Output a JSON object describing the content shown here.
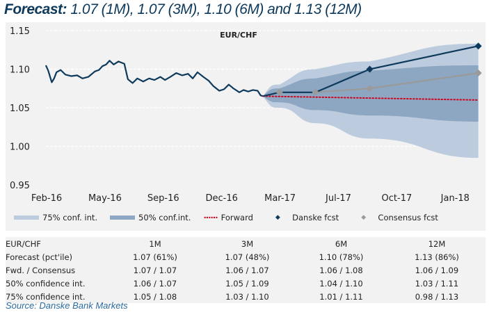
{
  "title": {
    "bold": "Forecast:",
    "rest": "1.07 (1M), 1.07 (3M), 1.10 (6M) and 1.13 (12M)"
  },
  "chart_data": {
    "type": "line",
    "title": "EUR/CHF",
    "ylim": [
      0.95,
      1.15
    ],
    "yticks": [
      "1.15",
      "1.10",
      "1.05",
      "1.00",
      "0.95"
    ],
    "xlim": [
      "2016-02-01",
      "2018-02-01"
    ],
    "xticks": [
      {
        "label": "Feb-16",
        "date": "2016-02-01"
      },
      {
        "label": "May-16",
        "date": "2016-05-01"
      },
      {
        "label": "Sep-16",
        "date": "2016-09-01"
      },
      {
        "label": "Dec-16",
        "date": "2016-12-01"
      },
      {
        "label": "Mar-17",
        "date": "2017-03-01"
      },
      {
        "label": "Jul-17",
        "date": "2017-07-01"
      },
      {
        "label": "Oct-17",
        "date": "2017-10-01"
      },
      {
        "label": "Jan-18",
        "date": "2018-01-01"
      }
    ],
    "grid": true,
    "legend_position": "bottom",
    "colors": {
      "band75": "#bccbdd",
      "band50": "#8da6c2",
      "spot": "#0d3a5c",
      "danske": "#0d3a5c",
      "consensus": "#9a9a9a",
      "forward": "#d0021b"
    },
    "spot": [
      [
        "2016-02-08",
        1.105
      ],
      [
        "2016-02-12",
        1.098
      ],
      [
        "2016-02-18",
        1.083
      ],
      [
        "2016-02-22",
        1.088
      ],
      [
        "2016-02-26",
        1.096
      ],
      [
        "2016-03-04",
        1.099
      ],
      [
        "2016-03-12",
        1.093
      ],
      [
        "2016-03-22",
        1.091
      ],
      [
        "2016-04-01",
        1.092
      ],
      [
        "2016-04-10",
        1.088
      ],
      [
        "2016-04-20",
        1.09
      ],
      [
        "2016-05-01",
        1.097
      ],
      [
        "2016-05-08",
        1.099
      ],
      [
        "2016-05-14",
        1.104
      ],
      [
        "2016-05-20",
        1.106
      ],
      [
        "2016-05-26",
        1.111
      ],
      [
        "2016-06-02",
        1.106
      ],
      [
        "2016-06-10",
        1.11
      ],
      [
        "2016-06-20",
        1.107
      ],
      [
        "2016-06-26",
        1.087
      ],
      [
        "2016-07-04",
        1.082
      ],
      [
        "2016-07-12",
        1.088
      ],
      [
        "2016-07-22",
        1.084
      ],
      [
        "2016-08-01",
        1.088
      ],
      [
        "2016-08-10",
        1.086
      ],
      [
        "2016-08-20",
        1.09
      ],
      [
        "2016-08-28",
        1.086
      ],
      [
        "2016-09-06",
        1.09
      ],
      [
        "2016-09-16",
        1.095
      ],
      [
        "2016-09-26",
        1.092
      ],
      [
        "2016-10-06",
        1.094
      ],
      [
        "2016-10-14",
        1.088
      ],
      [
        "2016-10-22",
        1.096
      ],
      [
        "2016-11-01",
        1.09
      ],
      [
        "2016-11-10",
        1.085
      ],
      [
        "2016-11-18",
        1.078
      ],
      [
        "2016-11-28",
        1.072
      ],
      [
        "2016-12-06",
        1.074
      ],
      [
        "2016-12-14",
        1.08
      ],
      [
        "2016-12-22",
        1.075
      ],
      [
        "2017-01-01",
        1.07
      ],
      [
        "2017-01-08",
        1.073
      ],
      [
        "2017-01-16",
        1.071
      ],
      [
        "2017-01-24",
        1.073
      ],
      [
        "2017-02-01",
        1.072
      ],
      [
        "2017-02-06",
        1.066
      ],
      [
        "2017-02-10",
        1.065
      ]
    ],
    "series": [
      {
        "name": "Danske fcst",
        "values": [
          [
            "2017-02-10",
            1.065
          ],
          [
            "2017-03-10",
            1.07
          ],
          [
            "2017-05-10",
            1.07
          ],
          [
            "2017-08-10",
            1.1
          ],
          [
            "2018-02-10",
            1.13
          ]
        ]
      },
      {
        "name": "Consensus fcst",
        "values": [
          [
            "2017-03-10",
            1.07
          ],
          [
            "2017-05-10",
            1.07
          ],
          [
            "2017-08-10",
            1.075
          ],
          [
            "2018-02-10",
            1.095
          ]
        ]
      },
      {
        "name": "Forward",
        "values": [
          [
            "2017-02-10",
            1.065
          ],
          [
            "2018-02-10",
            1.06
          ]
        ]
      }
    ],
    "bands": [
      {
        "name": "75% conf. int.",
        "values": [
          [
            "2017-02-10",
            1.065,
            1.065
          ],
          [
            "2017-03-10",
            1.05,
            1.08
          ],
          [
            "2017-05-10",
            1.03,
            1.1
          ],
          [
            "2017-08-10",
            1.01,
            1.11
          ],
          [
            "2018-02-10",
            0.985,
            1.133
          ]
        ]
      },
      {
        "name": "50% conf.int.",
        "values": [
          [
            "2017-02-10",
            1.065,
            1.065
          ],
          [
            "2017-03-10",
            1.057,
            1.075
          ],
          [
            "2017-05-10",
            1.047,
            1.088
          ],
          [
            "2017-08-10",
            1.04,
            1.098
          ],
          [
            "2018-02-10",
            1.032,
            1.105
          ]
        ]
      }
    ]
  },
  "legend": [
    "75% conf. int.",
    "50% conf.int.",
    "Forward",
    "Danske fcst",
    "Consensus fcst"
  ],
  "table": {
    "header": [
      "EUR/CHF",
      "1M",
      "3M",
      "6M",
      "12M"
    ],
    "rows": [
      [
        "Forecast (pct'ile)",
        "1.07 (61%)",
        "1.07 (48%)",
        "1.10 (78%)",
        "1.13 (86%)"
      ],
      [
        "Fwd. / Consensus",
        "1.07 / 1.07",
        "1.06 / 1.07",
        "1.06 / 1.08",
        "1.06 / 1.09"
      ],
      [
        "50% confidence int.",
        "1.06 / 1.07",
        "1.05 / 1.09",
        "1.04 / 1.10",
        "1.03 / 1.11"
      ],
      [
        "75% confidence int.",
        "1.05 / 1.08",
        "1.03 / 1.10",
        "1.01 / 1.11",
        "0.98 / 1.13"
      ]
    ]
  },
  "source": "Source: Danske Bank Markets"
}
